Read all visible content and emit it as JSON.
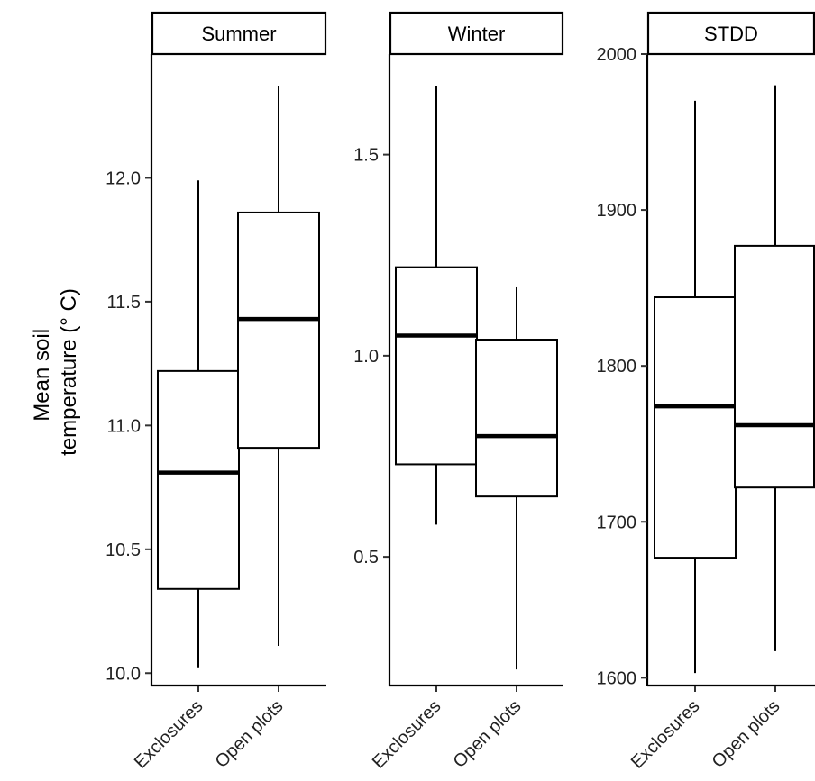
{
  "y_axis_title_lines": [
    "Mean soil",
    "temperature (° C)"
  ],
  "chart_data": [
    {
      "type": "boxplot",
      "facet": "Summer",
      "categories": [
        "Exclosures",
        "Open plots"
      ],
      "ylim": [
        9.95,
        12.5
      ],
      "yticks": [
        10.0,
        10.5,
        11.0,
        11.5,
        12.0
      ],
      "ytick_labels": [
        "10.0",
        "10.5",
        "11.0",
        "11.5",
        "12.0"
      ],
      "boxes": [
        {
          "category": "Exclosures",
          "min": 10.02,
          "q1": 10.34,
          "median": 10.81,
          "q3": 11.22,
          "max": 11.99
        },
        {
          "category": "Open plots",
          "min": 10.11,
          "q1": 10.91,
          "median": 11.43,
          "q3": 11.86,
          "max": 12.37
        }
      ]
    },
    {
      "type": "boxplot",
      "facet": "Winter",
      "categories": [
        "Exclosures",
        "Open plots"
      ],
      "ylim": [
        0.18,
        1.75
      ],
      "yticks": [
        0.5,
        1.0,
        1.5
      ],
      "ytick_labels": [
        "0.5",
        "1.0",
        "1.5"
      ],
      "boxes": [
        {
          "category": "Exclosures",
          "min": 0.58,
          "q1": 0.73,
          "median": 1.05,
          "q3": 1.22,
          "max": 1.67
        },
        {
          "category": "Open plots",
          "min": 0.22,
          "q1": 0.65,
          "median": 0.8,
          "q3": 1.04,
          "max": 1.17
        }
      ]
    },
    {
      "type": "boxplot",
      "facet": "STDD",
      "categories": [
        "Exclosures",
        "Open plots"
      ],
      "ylim": [
        1595,
        2000
      ],
      "yticks": [
        1600,
        1700,
        1800,
        1900,
        2000
      ],
      "ytick_labels": [
        "1600",
        "1700",
        "1800",
        "1900",
        "2000"
      ],
      "boxes": [
        {
          "category": "Exclosures",
          "min": 1603,
          "q1": 1677,
          "median": 1774,
          "q3": 1844,
          "max": 1970
        },
        {
          "category": "Open plots",
          "min": 1617,
          "q1": 1722,
          "median": 1762,
          "q3": 1877,
          "max": 1980
        }
      ]
    }
  ]
}
